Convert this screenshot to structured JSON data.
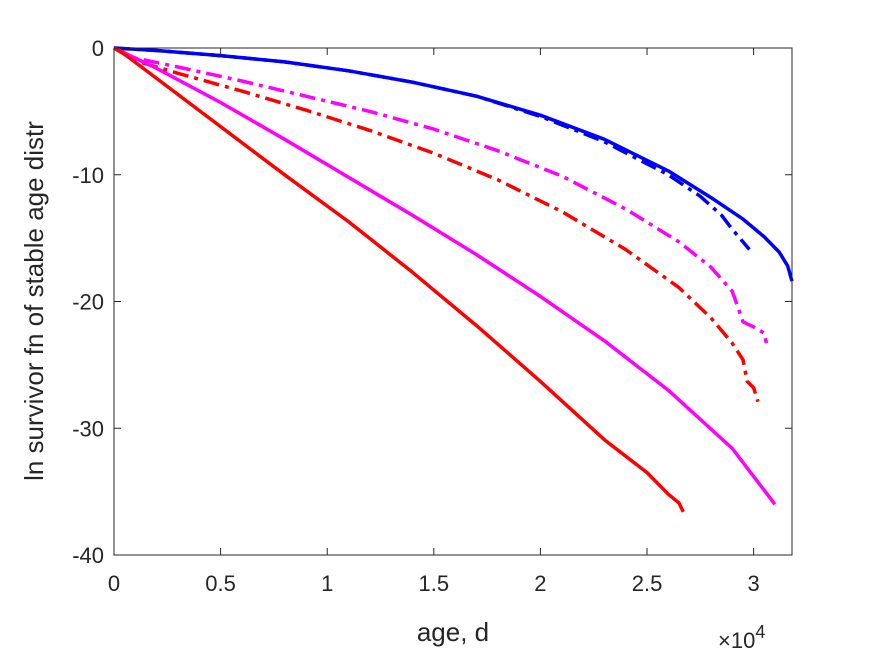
{
  "chart_data": {
    "type": "line",
    "title": "",
    "xlabel": "age, d",
    "ylabel": "ln survivor fn of stable age distr",
    "x_exponent_label": "×10",
    "x_exponent_power": "4",
    "xlim": [
      0,
      31800
    ],
    "ylim": [
      -40,
      0
    ],
    "x_ticks": [
      0,
      5000,
      10000,
      15000,
      20000,
      25000,
      30000
    ],
    "x_tick_labels": [
      "0",
      "0.5",
      "1",
      "1.5",
      "2",
      "2.5",
      "3"
    ],
    "y_ticks": [
      0,
      -10,
      -20,
      -30,
      -40
    ],
    "y_tick_labels": [
      "0",
      "-10",
      "-20",
      "-30",
      "-40"
    ],
    "grid": false,
    "series": [
      {
        "color": "#0000ff",
        "dash": "solid",
        "x": [
          0,
          2000,
          5000,
          8000,
          11000,
          14000,
          17000,
          20000,
          23000,
          26000,
          28000,
          29500,
          30500,
          31200,
          31600,
          31800
        ],
        "y": [
          0,
          -0.2,
          -0.6,
          -1.1,
          -1.8,
          -2.7,
          -3.8,
          -5.3,
          -7.2,
          -9.7,
          -11.8,
          -13.5,
          -14.9,
          -16.1,
          -17.2,
          -18.4
        ]
      },
      {
        "color": "#0000ff",
        "dash": "dashdot",
        "x": [
          0,
          2000,
          5000,
          8000,
          11000,
          14000,
          17000,
          20000,
          23000,
          26000,
          27500,
          28500,
          29000,
          29500,
          29800
        ],
        "y": [
          0,
          -0.2,
          -0.6,
          -1.1,
          -1.8,
          -2.7,
          -3.8,
          -5.4,
          -7.4,
          -10.0,
          -11.7,
          -13.2,
          -14.3,
          -15.3,
          -15.9
        ]
      },
      {
        "color": "#ff00ff",
        "dash": "dashdot",
        "x": [
          0,
          1000,
          3000,
          6000,
          9000,
          12000,
          15000,
          18000,
          21000,
          24000,
          26500,
          28000,
          29000,
          29500,
          30000,
          30500,
          30600
        ],
        "y": [
          0,
          -0.8,
          -1.5,
          -2.6,
          -3.8,
          -5.0,
          -6.4,
          -8.1,
          -10.1,
          -12.7,
          -15.3,
          -17.3,
          -19.2,
          -21.6,
          -22.0,
          -22.5,
          -23.3
        ]
      },
      {
        "color": "#ff0000",
        "dash": "dashdot",
        "x": [
          0,
          1000,
          3000,
          6000,
          9000,
          12000,
          15000,
          18000,
          21000,
          24000,
          26500,
          28000,
          29000,
          29500,
          29700,
          30000,
          30200
        ],
        "y": [
          0,
          -1.0,
          -2.0,
          -3.4,
          -4.9,
          -6.5,
          -8.3,
          -10.4,
          -12.9,
          -15.9,
          -18.9,
          -21.3,
          -23.3,
          -24.6,
          -26.3,
          -26.8,
          -27.9
        ]
      },
      {
        "color": "#ff00ff",
        "dash": "solid",
        "x": [
          0,
          500,
          2000,
          5000,
          8000,
          11000,
          14000,
          17000,
          20000,
          23000,
          26000,
          29000,
          31000
        ],
        "y": [
          0,
          -0.4,
          -1.6,
          -4.3,
          -7.2,
          -10.2,
          -13.2,
          -16.3,
          -19.6,
          -23.1,
          -27.0,
          -31.6,
          -36.0
        ]
      },
      {
        "color": "#ff0000",
        "dash": "solid",
        "x": [
          0,
          500,
          2000,
          5000,
          8000,
          11000,
          14000,
          17000,
          20000,
          23000,
          25000,
          26000,
          26500,
          26700
        ],
        "y": [
          0,
          -0.5,
          -2.4,
          -6.2,
          -10.0,
          -13.7,
          -17.7,
          -21.9,
          -26.3,
          -30.9,
          -33.5,
          -35.2,
          -35.9,
          -36.6
        ]
      }
    ]
  }
}
